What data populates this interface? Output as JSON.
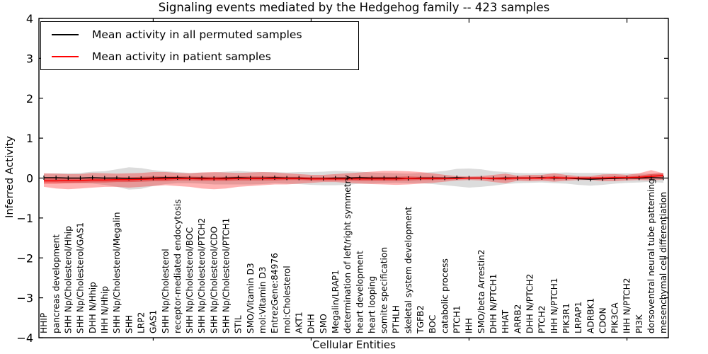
{
  "chart_data": {
    "type": "line",
    "title": "Signaling events mediated by the Hedgehog family -- 423 samples",
    "xlabel": "Cellular Entities",
    "ylabel": "Inferred Activity",
    "ylim": [
      -4,
      4
    ],
    "grid": false,
    "legend_position": "upper left",
    "yticks": [
      {
        "v": 4,
        "label": "4"
      },
      {
        "v": 3,
        "label": "3"
      },
      {
        "v": 2,
        "label": "2"
      },
      {
        "v": 1,
        "label": "1"
      },
      {
        "v": 0,
        "label": "0"
      },
      {
        "v": -1,
        "label": "−1"
      },
      {
        "v": -2,
        "label": "−2"
      },
      {
        "v": -3,
        "label": "−3"
      },
      {
        "v": -4,
        "label": "−4"
      }
    ],
    "xtick_positions": [
      9,
      22,
      35,
      48
    ],
    "categories": [
      "HHIP",
      "pancreas development",
      "SHH Np/Cholesterol/Hhip",
      "SHH Np/Cholesterol/GAS1",
      "DHH N/Hhip",
      "IHH N/Hhip",
      "SHH Np/Cholesterol/Megalin",
      "SHH",
      "LRP2",
      "GAS1",
      "SHH Np/Cholesterol",
      "receptor-mediated endocytosis",
      "SHH Np/Cholesterol/BOC",
      "SHH Np/Cholesterol/PTCH2",
      "SHH Np/Cholesterol/CDO",
      "SHH Np/Cholesterol/PTCH1",
      "STIL",
      "SMO/Vitamin D3",
      "mol:Vitamin D3",
      "EntrezGene:84976",
      "mol:Cholesterol",
      "AKT1",
      "DHH",
      "SMO",
      "Megalin/LRAP1",
      "determination of left/right symmetry",
      "heart development",
      "heart looping",
      "somite specification",
      "PTHLH",
      "skeletal system development",
      "TGFB2",
      "BOC",
      "catabolic process",
      "PTCH1",
      "IHH",
      "SMO/beta Arrestin2",
      "DHH N/PTCH1",
      "HHAT",
      "ARRB2",
      "DHH N/PTCH2",
      "PTCH2",
      "IHH N/PTCH1",
      "PIK3R1",
      "LRPAP1",
      "ADRBK1",
      "CDON",
      "PIK3CA",
      "IHH N/PTCH2",
      "PI3K",
      "dorsoventral neural tube patterning",
      "mesenchymal cell differentiation"
    ],
    "series": [
      {
        "name": "Mean activity in all permuted samples",
        "color": "#000000",
        "band_color": "rgba(128,128,128,0.28)",
        "values": [
          0.01,
          0.01,
          0.0,
          0.0,
          0.01,
          0.0,
          0.0,
          -0.01,
          -0.01,
          0.0,
          0.01,
          0.01,
          0.0,
          0.0,
          -0.01,
          0.0,
          0.01,
          0.0,
          0.0,
          0.01,
          0.0,
          0.0,
          -0.01,
          -0.01,
          0.0,
          0.0,
          0.01,
          0.0,
          0.0,
          0.0,
          -0.01,
          0.0,
          0.0,
          0.0,
          0.01,
          0.0,
          0.0,
          -0.01,
          0.0,
          0.0,
          0.0,
          0.01,
          0.0,
          0.0,
          -0.02,
          -0.03,
          -0.02,
          -0.01,
          0.0,
          0.0,
          0.01,
          0.0
        ],
        "band_halfwidth": [
          0.1,
          0.11,
          0.12,
          0.13,
          0.15,
          0.17,
          0.22,
          0.28,
          0.26,
          0.2,
          0.16,
          0.14,
          0.13,
          0.14,
          0.15,
          0.16,
          0.17,
          0.16,
          0.15,
          0.14,
          0.14,
          0.15,
          0.16,
          0.17,
          0.18,
          0.17,
          0.15,
          0.14,
          0.13,
          0.12,
          0.12,
          0.13,
          0.15,
          0.18,
          0.22,
          0.24,
          0.22,
          0.18,
          0.15,
          0.13,
          0.12,
          0.12,
          0.13,
          0.14,
          0.15,
          0.16,
          0.15,
          0.13,
          0.12,
          0.11,
          0.1,
          0.12
        ]
      },
      {
        "name": "Mean activity in patient samples",
        "color": "#ff0000",
        "band_color": "rgba(255,0,0,0.30)",
        "inner_band_color": "rgba(230,0,0,0.38)",
        "values": [
          -0.07,
          -0.07,
          -0.06,
          -0.06,
          -0.05,
          -0.05,
          -0.04,
          -0.04,
          -0.03,
          -0.02,
          -0.02,
          -0.01,
          -0.01,
          -0.02,
          -0.02,
          -0.02,
          -0.01,
          -0.01,
          -0.01,
          -0.01,
          -0.01,
          -0.01,
          -0.02,
          -0.02,
          -0.02,
          -0.02,
          -0.02,
          -0.02,
          -0.02,
          -0.02,
          -0.01,
          -0.01,
          -0.01,
          -0.01,
          -0.01,
          0.0,
          0.0,
          -0.01,
          -0.01,
          0.0,
          0.0,
          0.0,
          0.01,
          0.0,
          0.0,
          0.0,
          0.0,
          0.01,
          0.01,
          0.02,
          0.04,
          0.07
        ],
        "band_upper": [
          0.12,
          0.11,
          0.1,
          0.1,
          0.13,
          0.12,
          0.11,
          0.12,
          0.13,
          0.15,
          0.15,
          0.13,
          0.12,
          0.14,
          0.15,
          0.14,
          0.13,
          0.14,
          0.15,
          0.14,
          0.12,
          0.1,
          0.08,
          0.08,
          0.1,
          0.12,
          0.14,
          0.16,
          0.18,
          0.18,
          0.17,
          0.15,
          0.12,
          0.08,
          0.05,
          0.04,
          0.05,
          0.08,
          0.11,
          0.06,
          0.08,
          0.08,
          0.12,
          0.08,
          0.05,
          0.05,
          0.09,
          0.1,
          0.08,
          0.12,
          0.2,
          0.12
        ],
        "band_lower": [
          -0.22,
          -0.26,
          -0.28,
          -0.26,
          -0.24,
          -0.22,
          -0.22,
          -0.24,
          -0.22,
          -0.2,
          -0.18,
          -0.2,
          -0.22,
          -0.26,
          -0.28,
          -0.26,
          -0.22,
          -0.2,
          -0.18,
          -0.16,
          -0.16,
          -0.14,
          -0.12,
          -0.1,
          -0.1,
          -0.12,
          -0.14,
          -0.15,
          -0.16,
          -0.17,
          -0.16,
          -0.14,
          -0.12,
          -0.09,
          -0.06,
          -0.05,
          -0.06,
          -0.1,
          -0.13,
          -0.07,
          -0.08,
          -0.07,
          -0.09,
          -0.07,
          -0.05,
          -0.05,
          -0.08,
          -0.08,
          -0.06,
          -0.05,
          -0.06,
          -0.04
        ],
        "inner_band_halfwidth": [
          0.07,
          0.07,
          0.07,
          0.06,
          0.06,
          0.06,
          0.06,
          0.06,
          0.06,
          0.06,
          0.06,
          0.05,
          0.05,
          0.05,
          0.05,
          0.05,
          0.05,
          0.05,
          0.05,
          0.05,
          0.04,
          0.04,
          0.04,
          0.04,
          0.04,
          0.04,
          0.05,
          0.05,
          0.05,
          0.05,
          0.05,
          0.04,
          0.04,
          0.03,
          0.02,
          0.02,
          0.02,
          0.03,
          0.04,
          0.03,
          0.03,
          0.03,
          0.04,
          0.03,
          0.02,
          0.02,
          0.03,
          0.03,
          0.03,
          0.04,
          0.06,
          0.05
        ]
      }
    ]
  },
  "colors": {
    "frame": "#000000",
    "background": "#ffffff",
    "permuted_line": "#000000",
    "patient_line": "#ff0000",
    "permuted_band": "rgba(128,128,128,0.28)",
    "patient_band": "rgba(255,0,0,0.30)"
  }
}
